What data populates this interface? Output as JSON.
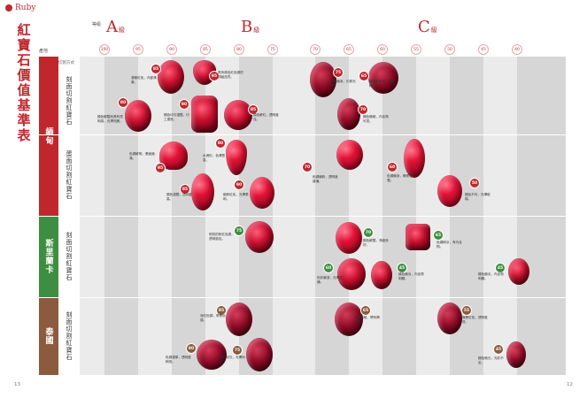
{
  "header": {
    "brand": "Ruby",
    "title": "紅寶石價值基準表",
    "page_left": "13",
    "page_right": "12"
  },
  "legend": {
    "grade_label": "等級",
    "origin_label": "產地",
    "cut_label": "切割方式"
  },
  "grades": [
    {
      "letter": "A",
      "suffix": "級"
    },
    {
      "letter": "B",
      "suffix": "級"
    },
    {
      "letter": "C",
      "suffix": "級"
    }
  ],
  "columns": [
    "100",
    "95",
    "90",
    "85",
    "80",
    "75",
    "70",
    "65",
    "60",
    "55",
    "50",
    "45",
    "40"
  ],
  "origins": [
    {
      "name": "緬甸",
      "color": "#c0272d",
      "rows": [
        {
          "cut": "刻面切割紅寶石"
        },
        {
          "cut": "蛋面切割紅寶石"
        }
      ]
    },
    {
      "name": "斯里蘭卡",
      "color": "#3e8e41",
      "rows": [
        {
          "cut": "刻面切割紅寶石"
        }
      ]
    },
    {
      "name": "泰國",
      "color": "#8c5a3c",
      "rows": [
        {
          "cut": "刻面切割紅寶石"
        }
      ]
    }
  ],
  "gems": [
    {
      "badge": "80",
      "badge_color": "red",
      "note": "顏色鮮豔而具有透明感，光澤亮麗。"
    },
    {
      "badge": "85",
      "badge_color": "red",
      "note": "濃郁紅色，內部清澈。"
    },
    {
      "badge": "95",
      "badge_color": "red",
      "note": "具有鴿血紅色調的頂級品質。"
    },
    {
      "badge": "90",
      "badge_color": "red",
      "note": "顏色均勻濃豔，切工優良。"
    },
    {
      "badge": "85",
      "badge_color": "red",
      "note": "顏色鮮紅，透明度佳。"
    },
    {
      "badge": "75",
      "badge_color": "red",
      "note": "色調偏深，仍具光澤。"
    },
    {
      "badge": "65",
      "badge_color": "red",
      "note": "略帶紫色調，光彩稍弱。"
    },
    {
      "badge": "70",
      "badge_color": "red",
      "note": "顏色略暗，內含物可見。"
    },
    {
      "badge": "95",
      "badge_color": "red",
      "note": "色調鮮明，蛋面飽滿。"
    },
    {
      "badge": "85",
      "badge_color": "red",
      "note": "顏色濃豔，透明度高。"
    },
    {
      "badge": "80",
      "badge_color": "red",
      "note": "水滴形，色澤豐富。"
    },
    {
      "badge": "90",
      "badge_color": "red",
      "note": "飽和紅色，光澤柔和。"
    },
    {
      "badge": "70",
      "badge_color": "red",
      "note": "色調偏粉，透明度普通。"
    },
    {
      "badge": "60",
      "badge_color": "red",
      "note": "色調偏深，略帶混濁。"
    },
    {
      "badge": "50",
      "badge_color": "red",
      "note": "顏色不均，光澤較弱。"
    },
    {
      "badge": "75",
      "badge_color": "green",
      "note": "明亮的粉紅色調，透明感佳。"
    },
    {
      "badge": "70",
      "badge_color": "green",
      "note": "顏色鮮豔，淨度良好。"
    },
    {
      "badge": "65",
      "badge_color": "green",
      "note": "色調稍淡，有內含物。"
    },
    {
      "badge": "60",
      "badge_color": "green",
      "note": "色彩偏淺，光澤普通。"
    },
    {
      "badge": "45",
      "badge_color": "green",
      "note": "顏色偏淡，內含物明顯。"
    },
    {
      "badge": "85",
      "badge_color": "brown",
      "note": "深紅色調，帶黑色感。"
    },
    {
      "badge": "80",
      "badge_color": "brown",
      "note": "色調濃厚，透明度稍低。"
    },
    {
      "badge": "75",
      "badge_color": "brown",
      "note": "顏色深沉，光澤尚可。"
    },
    {
      "badge": "65",
      "badge_color": "brown",
      "note": "色調偏暗，帶有褐色感。"
    },
    {
      "badge": "55",
      "badge_color": "brown",
      "note": "偏黑紅色，透明度低。"
    },
    {
      "badge": "45",
      "badge_color": "brown",
      "note": "顏色暗沉，光彩不足。"
    }
  ]
}
